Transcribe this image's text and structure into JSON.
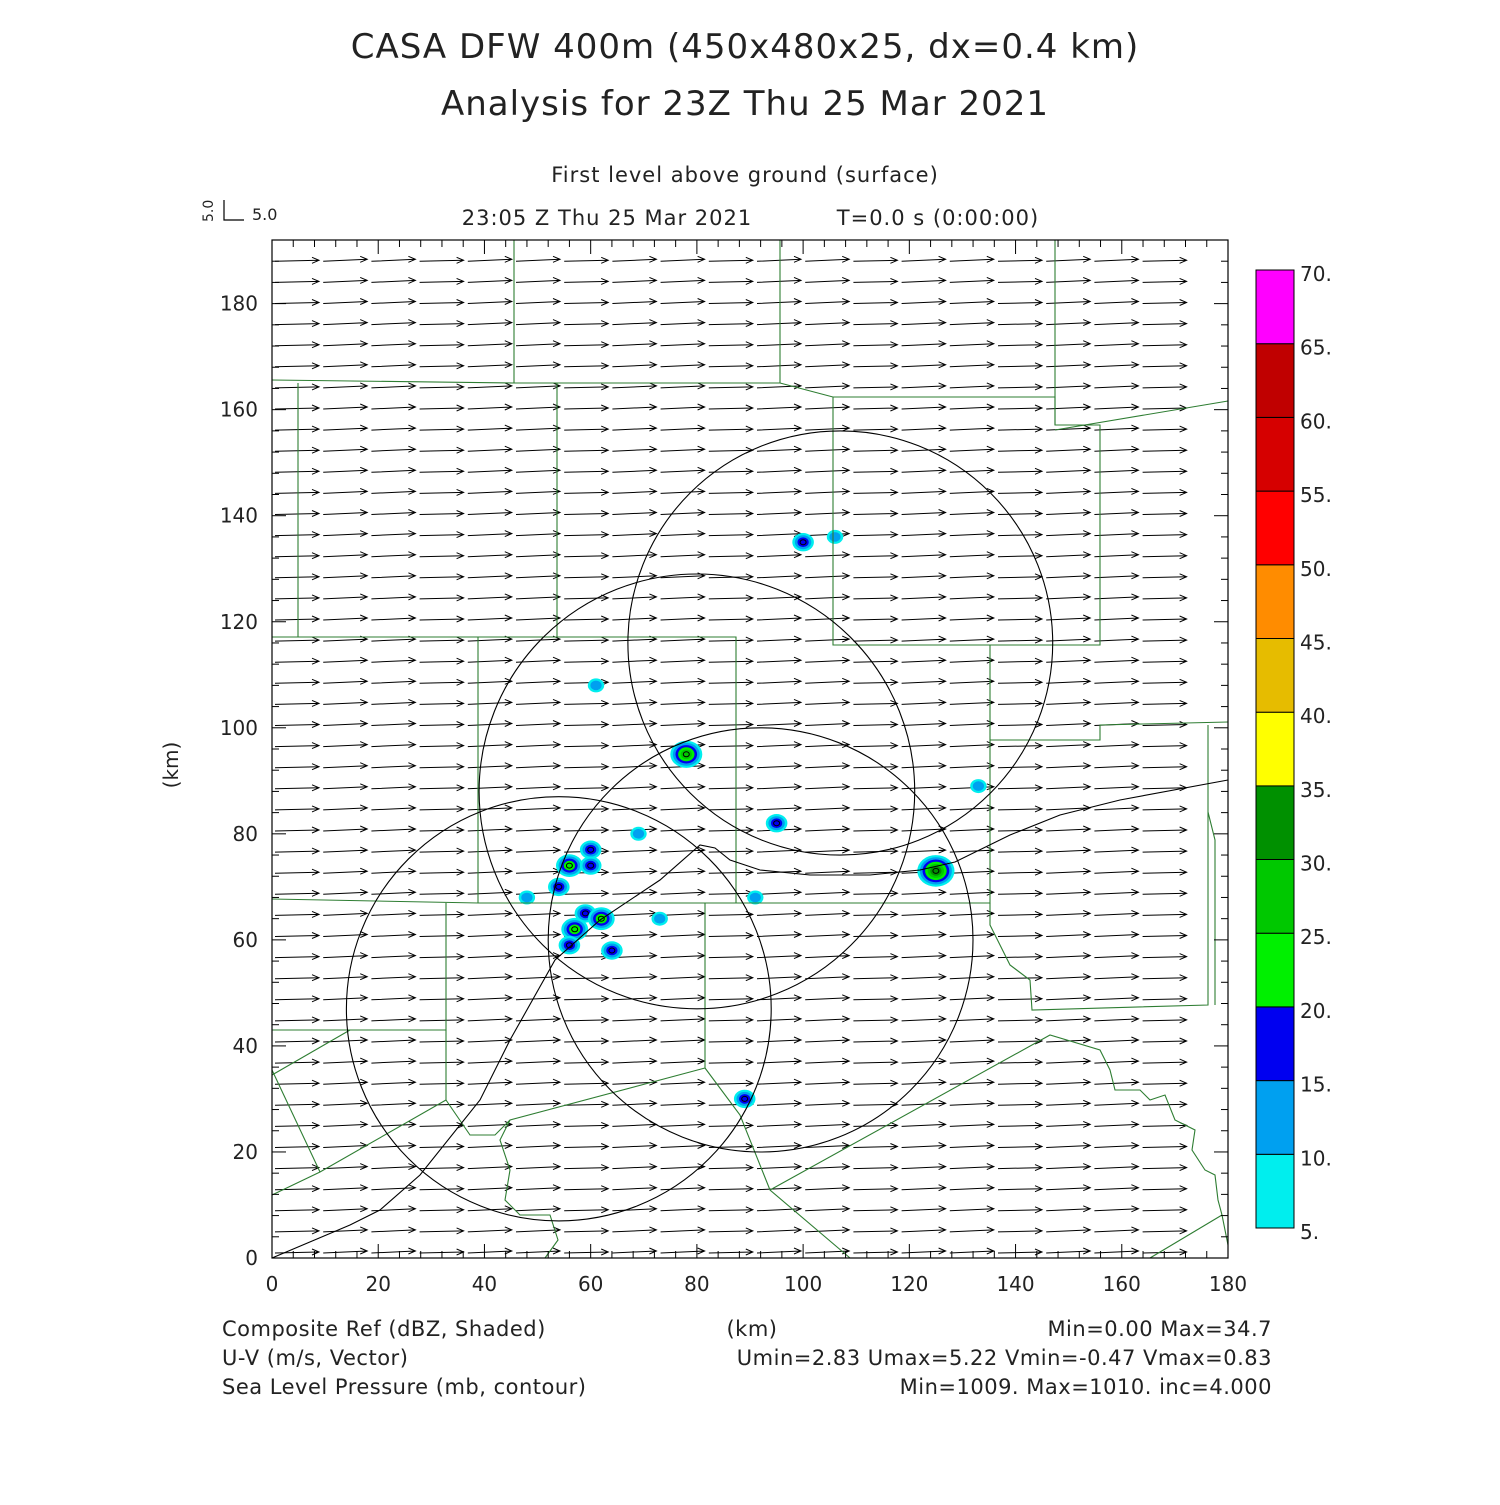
{
  "header": {
    "title_line1": "CASA DFW 400m (450x480x25, dx=0.4 km)",
    "title_line2": "Analysis for 23Z Thu 25 Mar 2021",
    "level": "First level above ground (surface)",
    "time": "23:05 Z Thu 25 Mar 2021",
    "integration_time": "T=0.0 s (0:00:00)",
    "vector_scale_v": "5.0",
    "vector_scale_u": "5.0"
  },
  "footer": {
    "field1_label": "Composite Ref (dBZ, Shaded)",
    "field1_stats": "Min=0.00 Max=34.7",
    "field2_label": "U-V (m/s, Vector)",
    "field2_stats": "Umin=2.83 Umax=5.22 Vmin=-0.47 Vmax=0.83",
    "field3_label": "Sea Level Pressure (mb, contour)",
    "field3_stats": "Min=1009. Max=1010. inc=4.000",
    "x_unit": "(km)"
  },
  "chart_data": {
    "type": "heatmap",
    "xlabel": "(km)",
    "ylabel": "(km)",
    "xlim": [
      0,
      180
    ],
    "ylim": [
      0,
      192
    ],
    "x_ticks": [
      "0",
      "20",
      "40",
      "60",
      "80",
      "100",
      "120",
      "140",
      "160",
      "180"
    ],
    "y_ticks": [
      "0",
      "20",
      "40",
      "60",
      "80",
      "100",
      "120",
      "140",
      "160",
      "180"
    ],
    "colorbar": {
      "labels": [
        "5.",
        "10.",
        "15.",
        "20.",
        "25.",
        "30.",
        "35.",
        "40.",
        "45.",
        "50.",
        "55.",
        "60.",
        "65.",
        "70."
      ],
      "bounds": [
        5,
        10,
        15,
        20,
        25,
        30,
        35,
        40,
        45,
        50,
        55,
        60,
        65,
        70
      ],
      "colors": [
        "#00eeee",
        "#00a0f0",
        "#0000f0",
        "#00f000",
        "#00c800",
        "#009000",
        "#ffff00",
        "#e6bc00",
        "#ff8c00",
        "#ff0000",
        "#d60000",
        "#c00000",
        "#ff00ff"
      ]
    },
    "radar_range_circles": [
      {
        "cx": 107,
        "cy": 116,
        "r": 40
      },
      {
        "cx": 80,
        "cy": 88,
        "r": 41
      },
      {
        "cx": 92,
        "cy": 60,
        "r": 40
      },
      {
        "cx": 54,
        "cy": 47,
        "r": 40
      }
    ],
    "echoes_dbz": [
      {
        "x": 100,
        "y": 135,
        "dbz": 15
      },
      {
        "x": 106,
        "y": 136,
        "dbz": 10
      },
      {
        "x": 61,
        "y": 108,
        "dbz": 10
      },
      {
        "x": 78,
        "y": 95,
        "dbz": 28
      },
      {
        "x": 95,
        "y": 82,
        "dbz": 17
      },
      {
        "x": 125,
        "y": 73,
        "dbz": 32
      },
      {
        "x": 133,
        "y": 89,
        "dbz": 10
      },
      {
        "x": 56,
        "y": 74,
        "dbz": 24
      },
      {
        "x": 60,
        "y": 77,
        "dbz": 18
      },
      {
        "x": 60,
        "y": 74,
        "dbz": 16
      },
      {
        "x": 54,
        "y": 70,
        "dbz": 17
      },
      {
        "x": 48,
        "y": 68,
        "dbz": 12
      },
      {
        "x": 59,
        "y": 65,
        "dbz": 18
      },
      {
        "x": 62,
        "y": 64,
        "dbz": 20
      },
      {
        "x": 57,
        "y": 62,
        "dbz": 24
      },
      {
        "x": 56,
        "y": 59,
        "dbz": 16
      },
      {
        "x": 64,
        "y": 58,
        "dbz": 16
      },
      {
        "x": 69,
        "y": 80,
        "dbz": 12
      },
      {
        "x": 73,
        "y": 64,
        "dbz": 12
      },
      {
        "x": 91,
        "y": 68,
        "dbz": 12
      },
      {
        "x": 89,
        "y": 30,
        "dbz": 17
      }
    ],
    "wind_vector": {
      "u_approx": 4.0,
      "v_approx": 0.2
    }
  }
}
